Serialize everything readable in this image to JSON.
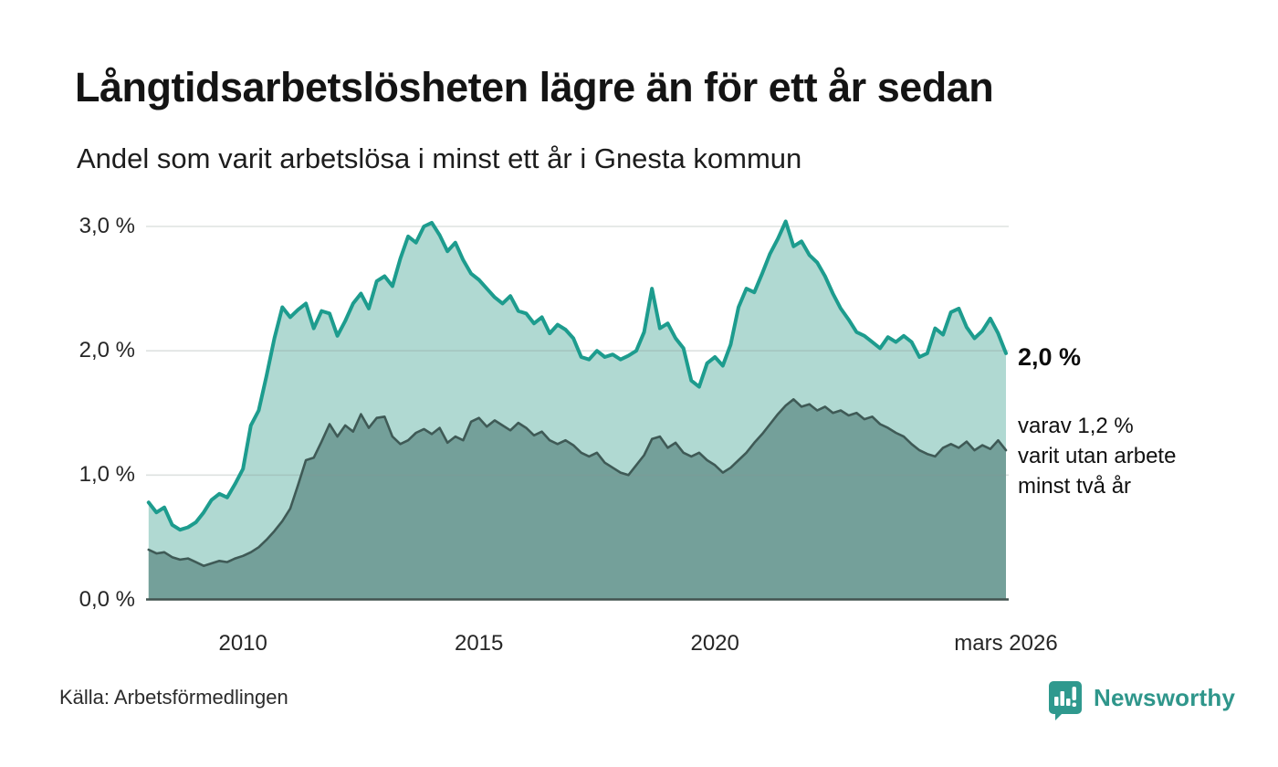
{
  "header": {
    "title": "Långtidsarbetslösheten lägre än för ett år sedan",
    "subtitle": "Andel som varit arbetslösa i minst ett år i Gnesta kommun"
  },
  "chart_data": {
    "type": "area",
    "title": "Långtidsarbetslösheten lägre än för ett år sedan",
    "x_start_year": 2008.0,
    "x_step_years": 0.1666667,
    "x_end_year": 2026.1667,
    "ylim": [
      0,
      3.2
    ],
    "grid": true,
    "y_ticks": [
      {
        "label": "0,0 %",
        "value": 0
      },
      {
        "label": "1,0 %",
        "value": 1
      },
      {
        "label": "2,0 %",
        "value": 2
      },
      {
        "label": "3,0 %",
        "value": 3
      }
    ],
    "x_ticks": [
      {
        "label": "2010",
        "year": 2010
      },
      {
        "label": "2015",
        "year": 2015
      },
      {
        "label": "2020",
        "year": 2020
      },
      {
        "label": "mars 2026",
        "year": 2026.1667
      }
    ],
    "series": [
      {
        "name": "Arbetslösa minst ett år",
        "line_color": "#1d9c8e",
        "fill_color": "#b0d9d2",
        "line_width": 4,
        "end_value_label": "2,0 %",
        "values": [
          0.78,
          0.7,
          0.74,
          0.6,
          0.56,
          0.58,
          0.62,
          0.7,
          0.8,
          0.85,
          0.82,
          0.93,
          1.05,
          1.4,
          1.52,
          1.8,
          2.1,
          2.35,
          2.27,
          2.33,
          2.38,
          2.18,
          2.32,
          2.3,
          2.12,
          2.24,
          2.38,
          2.46,
          2.34,
          2.56,
          2.6,
          2.52,
          2.74,
          2.92,
          2.87,
          3.0,
          3.03,
          2.93,
          2.8,
          2.87,
          2.73,
          2.62,
          2.57,
          2.5,
          2.43,
          2.38,
          2.44,
          2.32,
          2.3,
          2.22,
          2.27,
          2.14,
          2.21,
          2.17,
          2.1,
          1.95,
          1.93,
          2.0,
          1.95,
          1.97,
          1.93,
          1.96,
          2.0,
          2.15,
          2.5,
          2.18,
          2.22,
          2.1,
          2.02,
          1.76,
          1.71,
          1.9,
          1.95,
          1.88,
          2.05,
          2.35,
          2.5,
          2.47,
          2.62,
          2.78,
          2.9,
          3.04,
          2.84,
          2.88,
          2.77,
          2.71,
          2.6,
          2.46,
          2.34,
          2.25,
          2.15,
          2.12,
          2.07,
          2.02,
          2.11,
          2.07,
          2.12,
          2.07,
          1.95,
          1.98,
          2.18,
          2.13,
          2.31,
          2.34,
          2.19,
          2.1,
          2.16,
          2.26,
          2.14,
          1.98
        ]
      },
      {
        "name": "Arbetslösa minst två år",
        "line_color": "#3f5a56",
        "fill_color": "#74a09a",
        "line_width": 2.6,
        "end_value_label": "1,2 %",
        "values": [
          0.4,
          0.37,
          0.38,
          0.34,
          0.32,
          0.33,
          0.3,
          0.27,
          0.29,
          0.31,
          0.3,
          0.33,
          0.35,
          0.38,
          0.42,
          0.48,
          0.55,
          0.63,
          0.73,
          0.92,
          1.12,
          1.14,
          1.27,
          1.41,
          1.31,
          1.4,
          1.35,
          1.49,
          1.38,
          1.46,
          1.47,
          1.31,
          1.25,
          1.28,
          1.34,
          1.37,
          1.33,
          1.38,
          1.26,
          1.31,
          1.28,
          1.43,
          1.46,
          1.39,
          1.44,
          1.4,
          1.36,
          1.42,
          1.38,
          1.32,
          1.35,
          1.28,
          1.25,
          1.28,
          1.24,
          1.18,
          1.15,
          1.18,
          1.1,
          1.06,
          1.02,
          1.0,
          1.08,
          1.16,
          1.29,
          1.31,
          1.22,
          1.26,
          1.18,
          1.15,
          1.18,
          1.12,
          1.08,
          1.02,
          1.06,
          1.12,
          1.18,
          1.26,
          1.33,
          1.41,
          1.49,
          1.56,
          1.61,
          1.55,
          1.57,
          1.52,
          1.55,
          1.5,
          1.52,
          1.48,
          1.5,
          1.45,
          1.47,
          1.41,
          1.38,
          1.34,
          1.31,
          1.25,
          1.2,
          1.17,
          1.15,
          1.22,
          1.25,
          1.22,
          1.27,
          1.2,
          1.24,
          1.21,
          1.28,
          1.2
        ]
      }
    ],
    "annotations": {
      "end_label": "2,0 %",
      "sub_label_lines": [
        "varav 1,2 %",
        "varit utan arbete",
        "minst två år"
      ]
    }
  },
  "footer": {
    "source": "Källa: Arbetsförmedlingen",
    "brand": "Newsworthy"
  },
  "colors": {
    "accent_teal": "#1d9c8e",
    "light_fill": "#b0d9d2",
    "dark_fill": "#74a09a",
    "dark_line": "#3f5a56",
    "baseline": "#42524f",
    "gridline": "#8a9794",
    "brand_teal": "#2f968b"
  }
}
